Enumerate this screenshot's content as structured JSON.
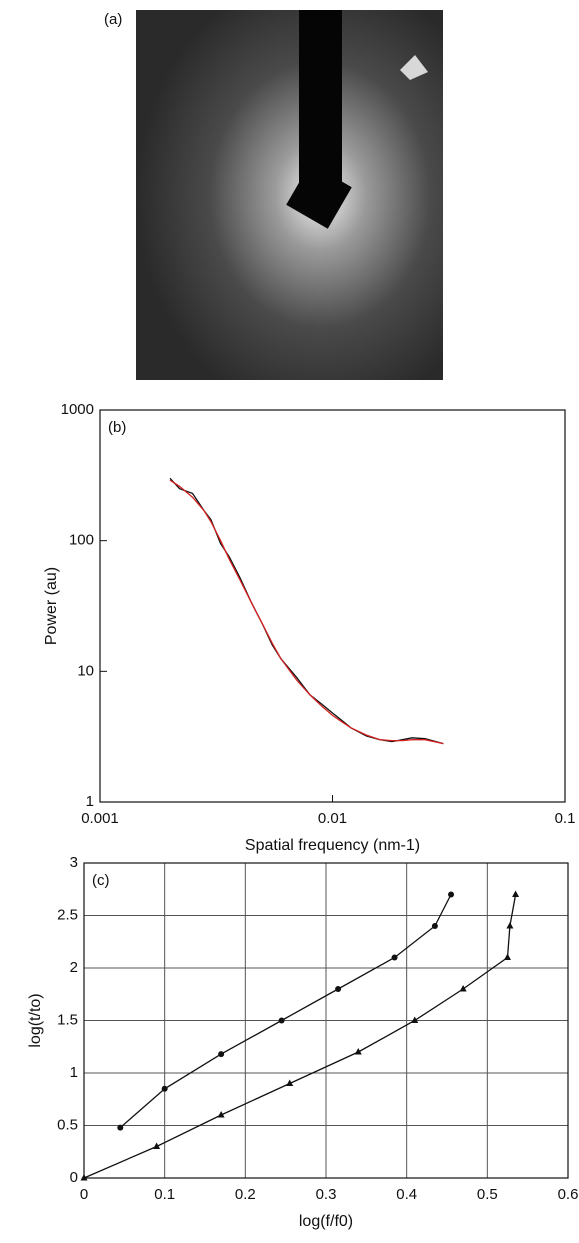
{
  "image_panel": {
    "label": "(a)"
  },
  "chart_data": [
    {
      "type": "line",
      "panel_label": "(b)",
      "x_label": "Spatial frequency (nm-1)",
      "y_label": "Power (au)",
      "xscale": "log",
      "yscale": "log",
      "xlim": [
        0.001,
        0.1
      ],
      "xticks": [
        0.001,
        0.01,
        0.1
      ],
      "ylim": [
        1,
        1000
      ],
      "yticks": [
        1,
        10,
        100,
        1000
      ],
      "grid": false,
      "x": [
        0.002,
        0.0022,
        0.0025,
        0.0028,
        0.003,
        0.0033,
        0.0036,
        0.004,
        0.0045,
        0.005,
        0.0055,
        0.006,
        0.007,
        0.008,
        0.009,
        0.01,
        0.011,
        0.012,
        0.014,
        0.016,
        0.018,
        0.02,
        0.022,
        0.025,
        0.03
      ],
      "series": [
        {
          "color": "#111111",
          "values": [
            300,
            250,
            230,
            170,
            145,
            95,
            75,
            52,
            33,
            23,
            16,
            12.5,
            9,
            6.6,
            5.6,
            4.8,
            4.2,
            3.7,
            3.2,
            3.0,
            2.9,
            3.0,
            3.1,
            3.05,
            2.8
          ]
        },
        {
          "color": "#d42020",
          "values": [
            290,
            260,
            215,
            170,
            140,
            100,
            72,
            50,
            33,
            23,
            16.5,
            12.5,
            8.6,
            6.6,
            5.4,
            4.6,
            4.1,
            3.7,
            3.25,
            3.0,
            2.95,
            2.95,
            3.0,
            3.0,
            2.8
          ]
        }
      ]
    },
    {
      "type": "scatter",
      "panel_label": "(c)",
      "x_label": "log(f/f0)",
      "y_label": "log(t/to)",
      "xlim": [
        0,
        0.6
      ],
      "xticks": [
        0,
        0.1,
        0.2,
        0.3,
        0.4,
        0.5,
        0.6
      ],
      "ylim": [
        0,
        3
      ],
      "yticks": [
        0,
        0.5,
        1,
        1.5,
        2,
        2.5,
        3
      ],
      "grid": true,
      "series": [
        {
          "marker": "circle",
          "color": "#111111",
          "x": [
            0.045,
            0.1,
            0.17,
            0.245,
            0.315,
            0.385,
            0.435,
            0.455
          ],
          "values": [
            0.48,
            0.85,
            1.18,
            1.5,
            1.8,
            2.1,
            2.4,
            2.7
          ]
        },
        {
          "marker": "triangle",
          "color": "#111111",
          "x": [
            0,
            0.09,
            0.17,
            0.255,
            0.34,
            0.41,
            0.47,
            0.525,
            0.528,
            0.535
          ],
          "values": [
            0,
            0.3,
            0.6,
            0.9,
            1.2,
            1.5,
            1.8,
            2.1,
            2.4,
            2.7
          ]
        }
      ]
    }
  ]
}
